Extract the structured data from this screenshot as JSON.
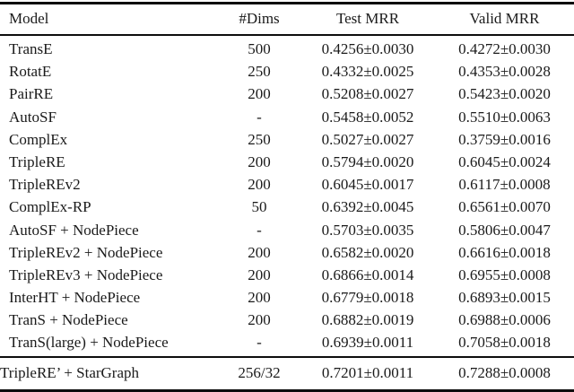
{
  "table": {
    "headers": [
      "Model",
      "#Dims",
      "Test MRR",
      "Valid MRR"
    ],
    "rows": [
      [
        "TransE",
        "500",
        "0.4256±0.0030",
        "0.4272±0.0030"
      ],
      [
        "RotatE",
        "250",
        "0.4332±0.0025",
        "0.4353±0.0028"
      ],
      [
        "PairRE",
        "200",
        "0.5208±0.0027",
        "0.5423±0.0020"
      ],
      [
        "AutoSF",
        "-",
        "0.5458±0.0052",
        "0.5510±0.0063"
      ],
      [
        "ComplEx",
        "250",
        "0.5027±0.0027",
        "0.3759±0.0016"
      ],
      [
        "TripleRE",
        "200",
        "0.5794±0.0020",
        "0.6045±0.0024"
      ],
      [
        "TripleREv2",
        "200",
        "0.6045±0.0017",
        "0.6117±0.0008"
      ],
      [
        "ComplEx-RP",
        "50",
        "0.6392±0.0045",
        "0.6561±0.0070"
      ],
      [
        "AutoSF + NodePiece",
        "-",
        "0.5703±0.0035",
        "0.5806±0.0047"
      ],
      [
        "TripleREv2 + NodePiece",
        "200",
        "0.6582±0.0020",
        "0.6616±0.0018"
      ],
      [
        "TripleREv3 + NodePiece",
        "200",
        "0.6866±0.0014",
        "0.6955±0.0008"
      ],
      [
        "InterHT + NodePiece",
        "200",
        "0.6779±0.0018",
        "0.6893±0.0015"
      ],
      [
        "TranS + NodePiece",
        "200",
        "0.6882±0.0019",
        "0.6988±0.0006"
      ],
      [
        "TranS(large) + NodePiece",
        "-",
        "0.6939±0.0011",
        "0.7058±0.0018"
      ]
    ],
    "footer": [
      "TripleRE’ + StarGraph",
      "256/32",
      "0.7201±0.0011",
      "0.7288±0.0008"
    ],
    "colors": {
      "text": "#1a1a1a",
      "rule": "#0d0d0d",
      "background": "#ffffff"
    }
  }
}
